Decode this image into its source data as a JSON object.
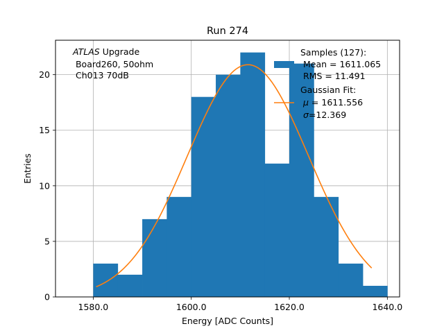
{
  "chart_data": {
    "type": "bar",
    "title": "Run 274",
    "xlabel": "Energy [ADC Counts]",
    "ylabel": "Entries",
    "xlim": [
      1572.3,
      1642.5
    ],
    "ylim": [
      0,
      23.1
    ],
    "xticks": [
      1580.0,
      1600.0,
      1620.0,
      1640.0
    ],
    "xtick_labels": [
      "1580.0",
      "1600.0",
      "1620.0",
      "1640.0"
    ],
    "yticks": [
      0,
      5,
      10,
      15,
      20
    ],
    "ytick_labels": [
      "0",
      "5",
      "10",
      "15",
      "20"
    ],
    "grid": true,
    "colors": {
      "bars": "#1f77b4",
      "fit": "#ff7f0e",
      "grid": "#b0b0b0"
    },
    "annotation": {
      "italic": "ATLAS",
      "line1_rest": " Upgrade",
      "line2": " Board260, 50ohm",
      "line3": " Ch013 70dB"
    },
    "legend": {
      "placement": "top-right",
      "hist_lines": [
        "Samples (127):",
        " Mean = 1611.065",
        " RMS = 11.491"
      ],
      "fit_line1": "Gaussian Fit:",
      "fit_mu_symbol": "μ",
      "fit_mu_rest": " = 1611.556",
      "fit_sigma_symbol": "σ",
      "fit_sigma_rest": "=12.369"
    },
    "histogram": {
      "bins": [
        1580,
        1585,
        1590,
        1595,
        1600,
        1605,
        1610,
        1615,
        1620,
        1625,
        1630,
        1635,
        1640
      ],
      "counts": [
        3,
        2,
        7,
        9,
        18,
        20,
        22,
        12,
        21,
        9,
        3,
        1
      ]
    },
    "fit": {
      "function": "gaussian",
      "mu": 1611.556,
      "sigma": 12.369,
      "amplitude": 20.9,
      "x_range": [
        1580.6,
        1636.8
      ]
    }
  }
}
